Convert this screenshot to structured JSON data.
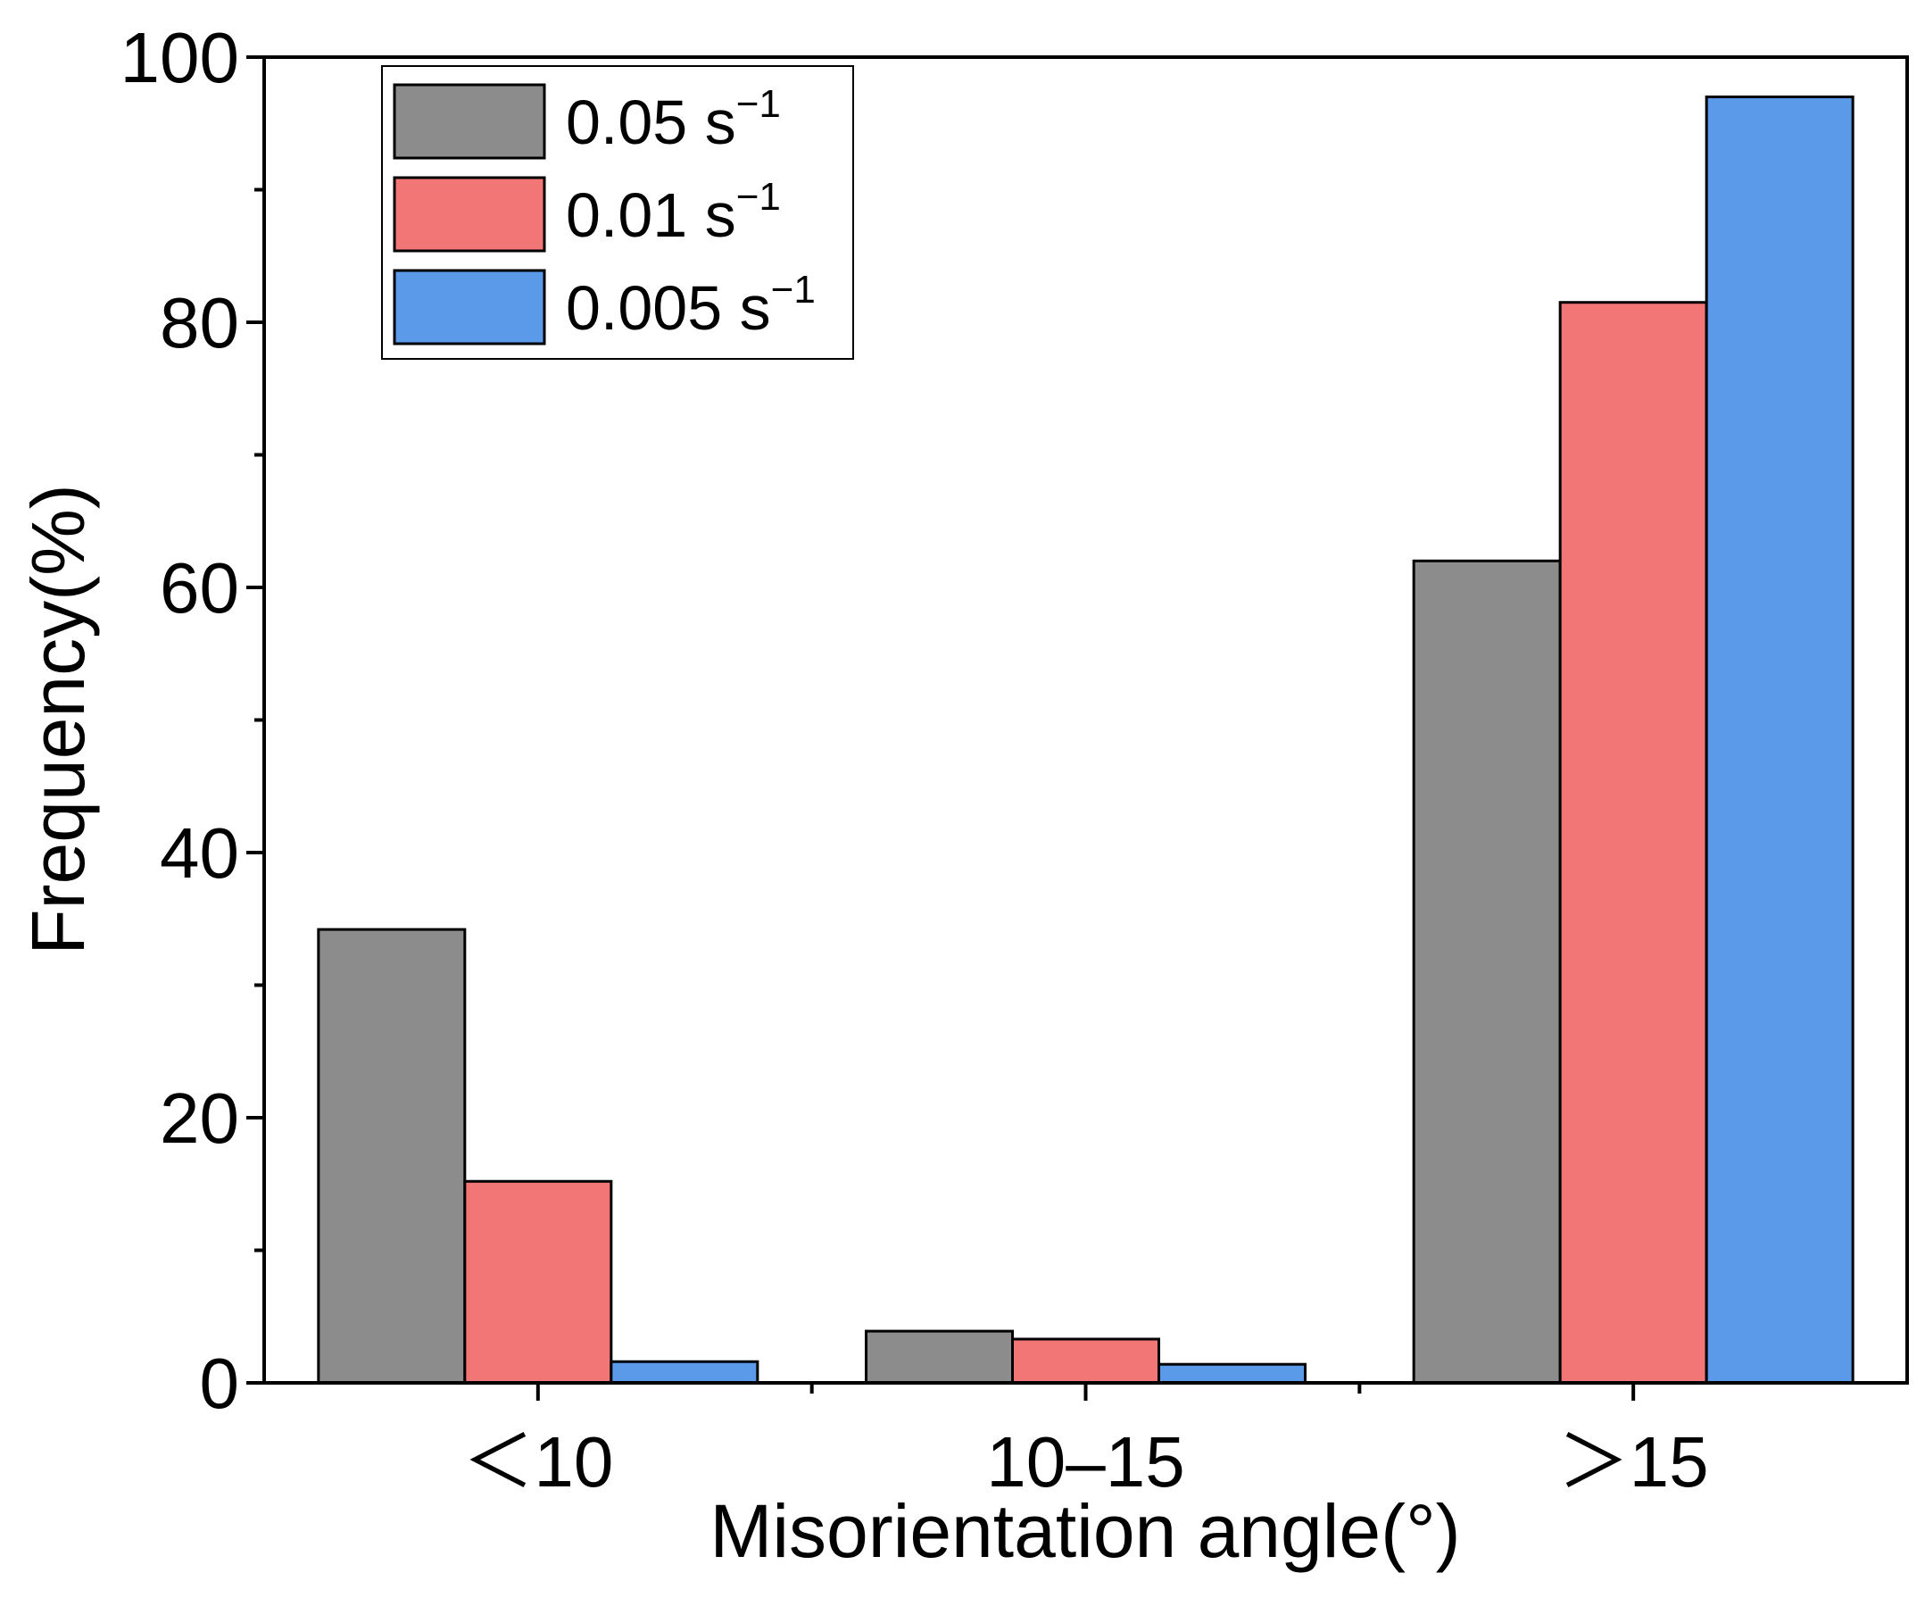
{
  "chart_data": {
    "type": "bar",
    "title": "",
    "xlabel": "Misorientation angle(°)",
    "ylabel": "Frequency(%)",
    "categories": [
      "＜10",
      "10–15",
      "＞15"
    ],
    "ylim": [
      0,
      100
    ],
    "yticks": [
      0,
      20,
      40,
      60,
      80,
      100
    ],
    "y_minor_step": 10,
    "legend_position": "top-left",
    "series": [
      {
        "name": "0.05 s",
        "superscript": "−1",
        "color": "#8c8c8c",
        "values": [
          34.2,
          3.9,
          62.0
        ]
      },
      {
        "name": "0.01 s",
        "superscript": "−1",
        "color": "#f27676",
        "values": [
          15.2,
          3.3,
          81.5
        ]
      },
      {
        "name": "0.005 s",
        "superscript": "−1",
        "color": "#5b9ae8",
        "values": [
          1.6,
          1.4,
          97.0
        ]
      }
    ]
  }
}
